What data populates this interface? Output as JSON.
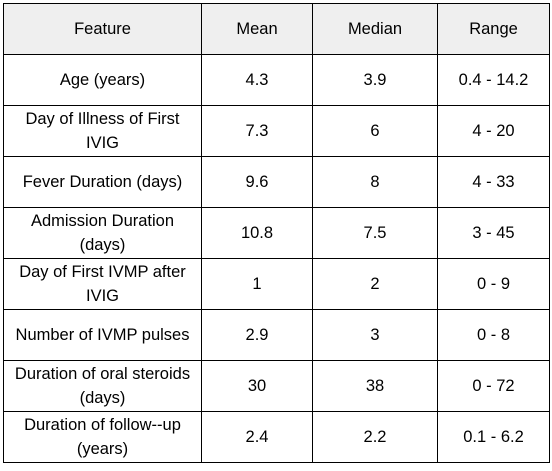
{
  "table": {
    "headers": [
      "Feature",
      "Mean",
      "Median",
      "Range"
    ],
    "rows": [
      [
        "Age (years)",
        "4.3",
        "3.9",
        "0.4 - 14.2"
      ],
      [
        "Day of Illness of First IVIG",
        "7.3",
        "6",
        "4 - 20"
      ],
      [
        "Fever Duration (days)",
        "9.6",
        "8",
        "4 - 33"
      ],
      [
        "Admission Duration (days)",
        "10.8",
        "7.5",
        "3 - 45"
      ],
      [
        "Day of First IVMP after IVIG",
        "1",
        "2",
        "0 - 9"
      ],
      [
        "Number of IVMP pulses",
        "2.9",
        "3",
        "0 - 8"
      ],
      [
        "Duration of oral steroids (days)",
        "30",
        "38",
        "0 - 72"
      ],
      [
        "Duration of follow--up (years)",
        "2.4",
        "2.2",
        "0.1 - 6.2"
      ]
    ]
  },
  "colors": {
    "header_background": "#efefef",
    "border": "#000000",
    "text": "#000000"
  }
}
